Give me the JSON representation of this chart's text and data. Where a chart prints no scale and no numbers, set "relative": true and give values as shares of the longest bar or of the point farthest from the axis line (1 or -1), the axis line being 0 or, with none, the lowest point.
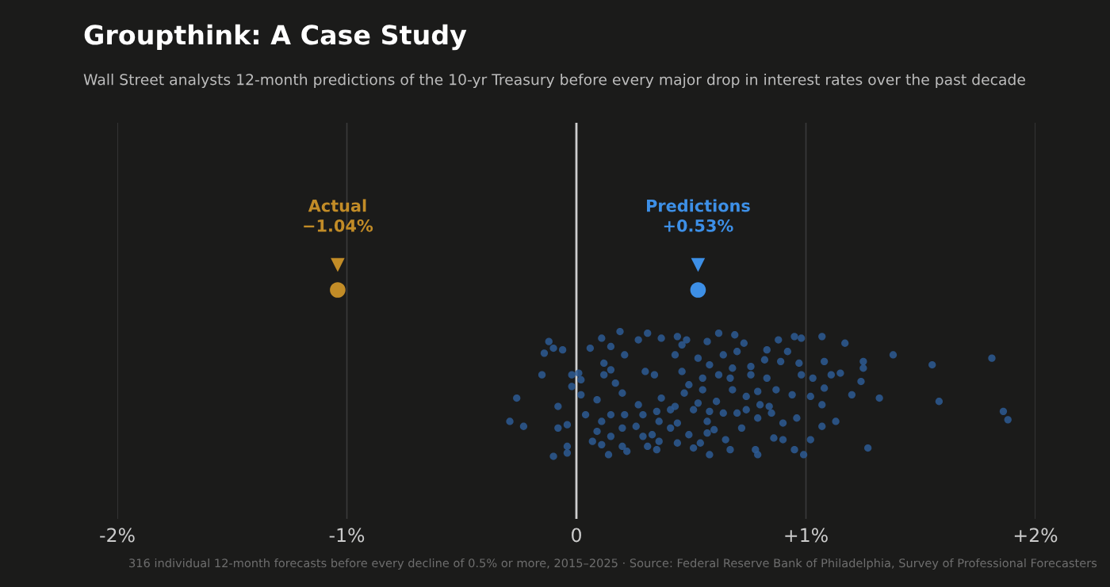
{
  "chart_data": {
    "type": "scatter",
    "title": "Groupthink: A Case Study",
    "subtitle": "Wall Street analysts 12-month predictions of the 10-yr Treasury before every major drop in interest rates over the past decade",
    "annotations": [
      "−1.04%",
      "+0.53%",
      "316 individual 12-month forecasts before every decline of 0.5% or more, 2015–2025 · Source: Federal Reserve Bank of Philadelphia, Survey of Professional Forecasters"
    ],
    "relative": true,
    "xlim": [
      -2,
      2
    ],
    "xticks": [
      {
        "value": -2,
        "label": "-2%"
      },
      {
        "value": -1,
        "label": "-1%"
      },
      {
        "value": 0,
        "label": "0"
      },
      {
        "value": 1,
        "label": "+1%"
      },
      {
        "value": 2,
        "label": "+2%"
      }
    ],
    "grid": "x",
    "marker": "circle",
    "ref_lines": [
      {
        "axis": "x",
        "value": 0,
        "color": "#cfcfcf"
      }
    ],
    "series": [
      {
        "color": "#2d5a94",
        "x": [
          -0.12,
          -0.1,
          -0.06,
          -0.14,
          -0.15,
          -0.26,
          -0.29,
          -0.23,
          -0.08,
          -0.08,
          -0.04,
          -0.04,
          -0.04,
          -0.1,
          -0.02,
          0.01,
          0.02,
          -0.02,
          0.02,
          0.06,
          0.11,
          0.15,
          0.19,
          0.27,
          0.31,
          0.37,
          0.21,
          0.12,
          0.15,
          0.12,
          0.3,
          0.17,
          0.2,
          0.09,
          0.27,
          0.37,
          0.04,
          0.15,
          0.21,
          0.29,
          0.35,
          0.11,
          0.09,
          0.15,
          0.2,
          0.26,
          0.29,
          0.33,
          0.07,
          0.11,
          0.14,
          0.2,
          0.22,
          0.31,
          0.36,
          0.35,
          0.36,
          0.34,
          0.44,
          0.48,
          0.62,
          0.69,
          0.73,
          0.57,
          0.46,
          0.43,
          0.53,
          0.58,
          0.64,
          0.7,
          0.68,
          0.62,
          0.67,
          0.76,
          0.83,
          0.82,
          0.88,
          0.95,
          0.98,
          0.92,
          0.89,
          0.97,
          0.76,
          0.83,
          0.98,
          0.46,
          0.49,
          0.55,
          0.55,
          0.47,
          0.68,
          0.74,
          0.79,
          0.87,
          0.94,
          0.8,
          0.84,
          0.43,
          0.53,
          0.61,
          0.41,
          0.51,
          0.58,
          0.64,
          0.74,
          0.7,
          0.79,
          0.85,
          0.9,
          0.96,
          0.44,
          0.41,
          0.57,
          0.72,
          0.49,
          0.57,
          0.6,
          0.65,
          0.44,
          0.54,
          0.51,
          0.58,
          0.67,
          0.78,
          0.79,
          0.86,
          0.9,
          0.95,
          0.99,
          1.02,
          1.07,
          1.08,
          1.15,
          1.11,
          1.03,
          1.08,
          1.02,
          1.07,
          1.13,
          1.07,
          1.17,
          1.38,
          1.25,
          1.25,
          1.55,
          1.81,
          1.24,
          1.2,
          1.32,
          1.58,
          1.86,
          1.88,
          1.27
        ],
        "values": [
          0.69,
          0.65,
          0.64,
          0.62,
          0.49,
          0.35,
          0.21,
          0.18,
          0.3,
          0.17,
          0.19,
          0.06,
          0.02,
          0,
          0.49,
          0.5,
          0.46,
          0.42,
          0.37,
          0.65,
          0.71,
          0.66,
          0.75,
          0.7,
          0.74,
          0.71,
          0.61,
          0.56,
          0.52,
          0.49,
          0.51,
          0.44,
          0.38,
          0.34,
          0.31,
          0.35,
          0.25,
          0.25,
          0.25,
          0.25,
          0.27,
          0.21,
          0.15,
          0.12,
          0.17,
          0.18,
          0.12,
          0.13,
          0.09,
          0.07,
          0.01,
          0.06,
          0.03,
          0.06,
          0.09,
          0.04,
          0.21,
          0.49,
          0.72,
          0.7,
          0.74,
          0.73,
          0.68,
          0.69,
          0.67,
          0.61,
          0.59,
          0.55,
          0.61,
          0.63,
          0.53,
          0.49,
          0.47,
          0.54,
          0.64,
          0.58,
          0.7,
          0.72,
          0.71,
          0.63,
          0.57,
          0.56,
          0.49,
          0.47,
          0.49,
          0.51,
          0.43,
          0.47,
          0.4,
          0.38,
          0.4,
          0.36,
          0.39,
          0.4,
          0.37,
          0.31,
          0.3,
          0.3,
          0.32,
          0.33,
          0.28,
          0.28,
          0.27,
          0.26,
          0.28,
          0.26,
          0.23,
          0.26,
          0.2,
          0.23,
          0.2,
          0.17,
          0.21,
          0.17,
          0.13,
          0.14,
          0.16,
          0.1,
          0.08,
          0.08,
          0.05,
          0.01,
          0.04,
          0.04,
          0.01,
          0.11,
          0.1,
          0.04,
          0.01,
          0.1,
          0.72,
          0.57,
          0.5,
          0.49,
          0.47,
          0.41,
          0.36,
          0.31,
          0.21,
          0.18,
          0.68,
          0.61,
          0.57,
          0.53,
          0.55,
          0.59,
          0.45,
          0.37,
          0.35,
          0.33,
          0.27,
          0.22,
          0.05
        ]
      },
      {
        "name": "Actual",
        "color": "#c28c27",
        "x": [
          -1.04
        ],
        "values": [
          1
        ]
      },
      {
        "name": "Predictions",
        "color": "#3d8fe6",
        "x": [
          0.53
        ],
        "values": [
          1
        ]
      }
    ]
  }
}
